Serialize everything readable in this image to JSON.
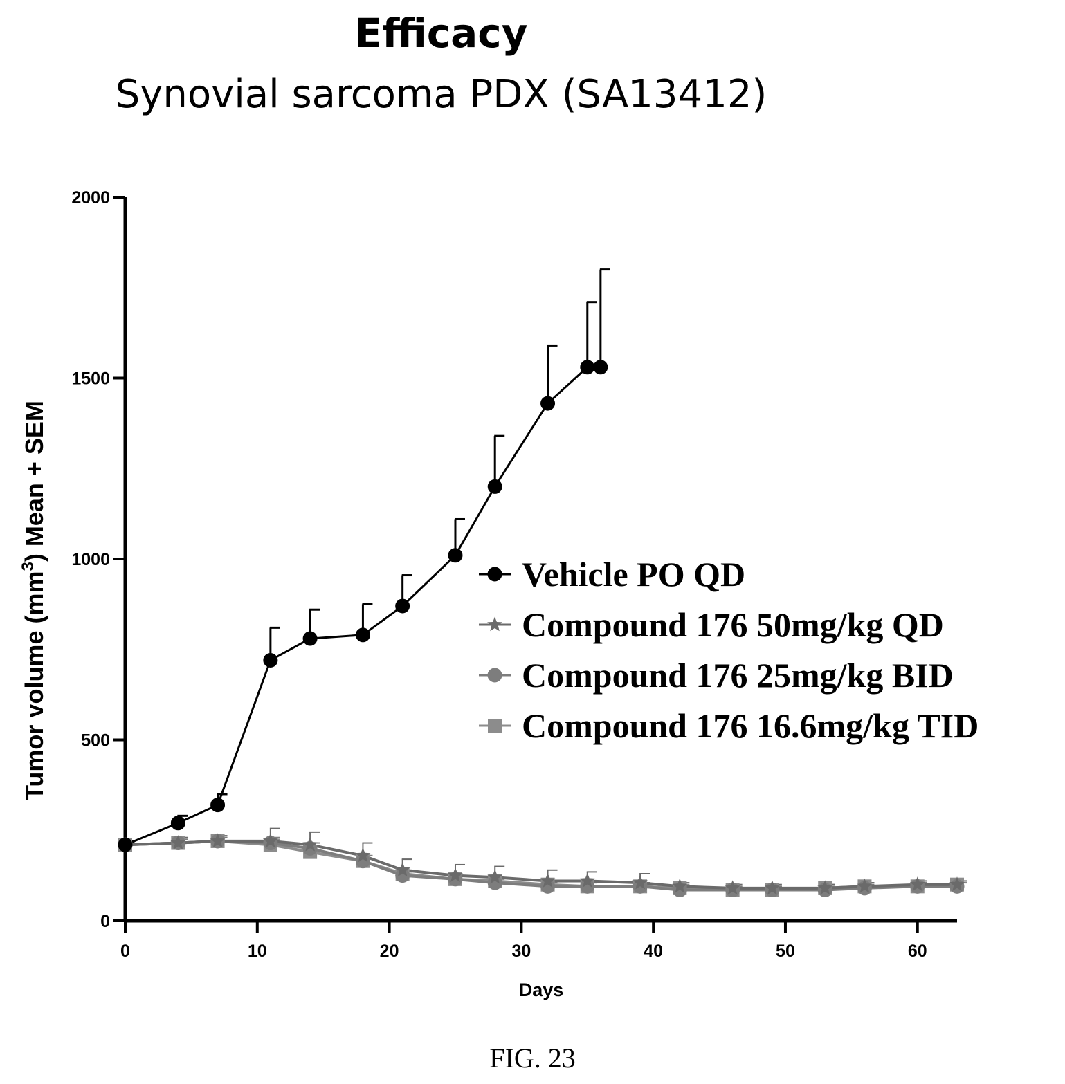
{
  "title": "Efficacy",
  "subtitle": "Synovial sarcoma PDX (SA13412)",
  "figure_caption": "FIG. 23",
  "chart_data": {
    "type": "line",
    "xlabel": "Days",
    "ylabel_parts": [
      "Tumor volume (mm",
      "3",
      ") Mean + SEM"
    ],
    "xlim": [
      0,
      63
    ],
    "ylim": [
      0,
      2000
    ],
    "x_ticks": [
      0,
      10,
      20,
      30,
      40,
      50,
      60
    ],
    "y_ticks": [
      0,
      500,
      1000,
      1500,
      2000
    ],
    "legend_position": "right",
    "series": [
      {
        "name": "Vehicle PO QD",
        "marker": "circle",
        "color": "#000000",
        "x": [
          0,
          4,
          7,
          11,
          14,
          18,
          21,
          25,
          28,
          32,
          35,
          36
        ],
        "y": [
          210,
          270,
          320,
          720,
          780,
          790,
          870,
          1010,
          1200,
          1430,
          1530,
          1530
        ],
        "sem": [
          10,
          20,
          30,
          90,
          80,
          85,
          85,
          100,
          140,
          160,
          180,
          270
        ]
      },
      {
        "name": "Compound 176 50mg/kg QD",
        "marker": "star",
        "color": "#6a6a6a",
        "x": [
          0,
          4,
          7,
          11,
          14,
          18,
          21,
          25,
          28,
          32,
          35,
          39,
          42,
          46,
          49,
          53,
          56,
          60,
          63
        ],
        "y": [
          210,
          215,
          220,
          220,
          210,
          180,
          140,
          125,
          120,
          110,
          110,
          105,
          95,
          90,
          90,
          90,
          95,
          100,
          100
        ],
        "sem": [
          10,
          15,
          15,
          35,
          35,
          35,
          30,
          30,
          30,
          30,
          25,
          25,
          10,
          10,
          10,
          10,
          10,
          10,
          10
        ]
      },
      {
        "name": "Compound 176 25mg/kg BID",
        "marker": "circle",
        "color": "#7d7d7d",
        "x": [
          0,
          4,
          7,
          11,
          14,
          18,
          21,
          25,
          28,
          32,
          35,
          39,
          42,
          46,
          49,
          53,
          56,
          60,
          63
        ],
        "y": [
          210,
          215,
          220,
          215,
          200,
          165,
          125,
          115,
          105,
          95,
          95,
          95,
          85,
          85,
          85,
          85,
          90,
          95,
          95
        ],
        "sem": [
          10,
          10,
          10,
          15,
          15,
          15,
          10,
          10,
          10,
          10,
          10,
          10,
          10,
          10,
          10,
          10,
          10,
          10,
          10
        ]
      },
      {
        "name": "Compound 176 16.6mg/kg TID",
        "marker": "square",
        "color": "#8c8c8c",
        "x": [
          0,
          4,
          7,
          11,
          14,
          18,
          21,
          25,
          28,
          32,
          35,
          39,
          42,
          46,
          49,
          53,
          56,
          60,
          63
        ],
        "y": [
          210,
          215,
          220,
          210,
          190,
          165,
          130,
          115,
          110,
          100,
          95,
          95,
          90,
          85,
          85,
          90,
          95,
          95,
          100
        ],
        "sem": [
          10,
          10,
          10,
          15,
          15,
          15,
          10,
          10,
          10,
          10,
          10,
          10,
          10,
          10,
          10,
          10,
          10,
          10,
          10
        ]
      }
    ]
  }
}
